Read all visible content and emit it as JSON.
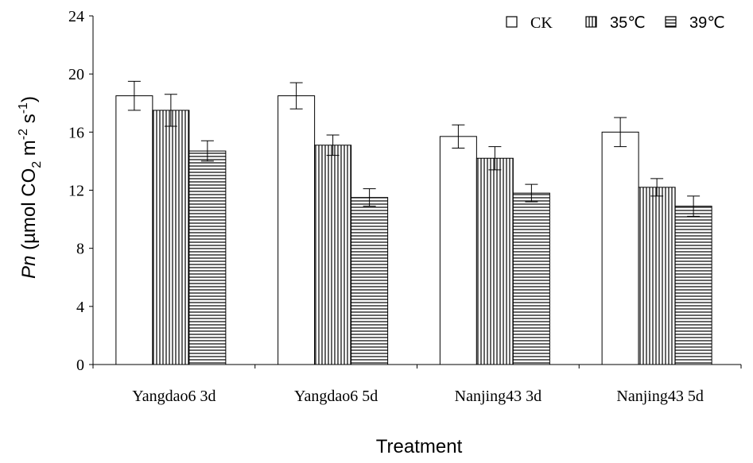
{
  "chart_data": {
    "type": "bar",
    "categories": [
      "Yangdao6 3d",
      "Yangdao6 5d",
      "Nanjing43 3d",
      "Nanjing43 5d"
    ],
    "series": [
      {
        "name": "CK",
        "pattern": "open",
        "values": [
          18.5,
          18.5,
          15.7,
          16.0
        ],
        "errors": [
          1.0,
          0.9,
          0.8,
          1.0
        ]
      },
      {
        "name": "35℃",
        "pattern": "vertical",
        "values": [
          17.5,
          15.1,
          14.2,
          12.2
        ],
        "errors": [
          1.1,
          0.7,
          0.8,
          0.6
        ]
      },
      {
        "name": "39℃",
        "pattern": "horizontal",
        "values": [
          14.7,
          11.5,
          11.8,
          10.9
        ],
        "errors": [
          0.7,
          0.6,
          0.6,
          0.7
        ]
      }
    ],
    "yticks": [
      "0",
      "4",
      "8",
      "12",
      "16",
      "20",
      "24"
    ],
    "ylim": [
      0,
      24
    ],
    "ylabel": {
      "italic": "Pn",
      "rest": " (µmol CO",
      "sub": "2",
      "mid1": " m",
      "sup1": "-2",
      "mid2": " s",
      "sup2": "-1",
      "end": ")"
    },
    "xlabel": "Treatment",
    "legend_position": "top-right",
    "grid": false
  }
}
